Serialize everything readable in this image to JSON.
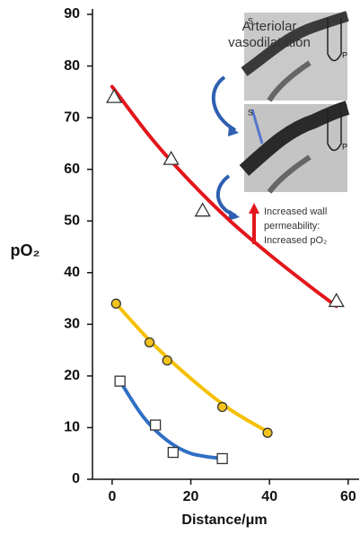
{
  "chart_data": {
    "type": "scatter",
    "xlabel": "Distance/μm",
    "ylabel": "pO₂",
    "xlim": [
      -5,
      63
    ],
    "ylim": [
      0,
      90
    ],
    "xticks": [
      0,
      20,
      40,
      60
    ],
    "yticks": [
      0,
      10,
      20,
      30,
      40,
      50,
      60,
      70,
      80,
      90
    ],
    "series": [
      {
        "marker": "triangle",
        "color": "#ffffff",
        "x": [
          0.5,
          15,
          23,
          57
        ],
        "values": [
          74,
          62,
          52,
          34.5
        ]
      },
      {
        "marker": "circle",
        "color": "#f2c21b",
        "x": [
          1,
          9.5,
          14,
          28,
          39.5
        ],
        "values": [
          34,
          26.5,
          23,
          14,
          9
        ]
      },
      {
        "marker": "square",
        "color": "#ffffff",
        "x": [
          2,
          11,
          15.5,
          28
        ],
        "values": [
          19,
          10.5,
          5.2,
          4
        ]
      }
    ],
    "fits": [
      {
        "color": "#e3161b",
        "x": [
          0,
          10,
          20,
          30,
          40,
          50,
          57
        ],
        "values": [
          76,
          66,
          57.5,
          50,
          43.5,
          37.5,
          33.5
        ]
      },
      {
        "color": "#f5c000",
        "x": [
          1,
          10,
          20,
          30,
          40
        ],
        "values": [
          34,
          26.5,
          19.5,
          13.5,
          9
        ]
      },
      {
        "color": "#2f6fc4",
        "x": [
          2,
          8,
          14,
          20,
          28
        ],
        "values": [
          19,
          12,
          7.5,
          5,
          4
        ]
      }
    ],
    "annotations": [
      "Arteriolar",
      "vasodilatation",
      "Increased wall",
      "permeability:",
      "Increased pO₂"
    ],
    "photo_labels": [
      "S",
      "P",
      "S",
      "P"
    ]
  }
}
